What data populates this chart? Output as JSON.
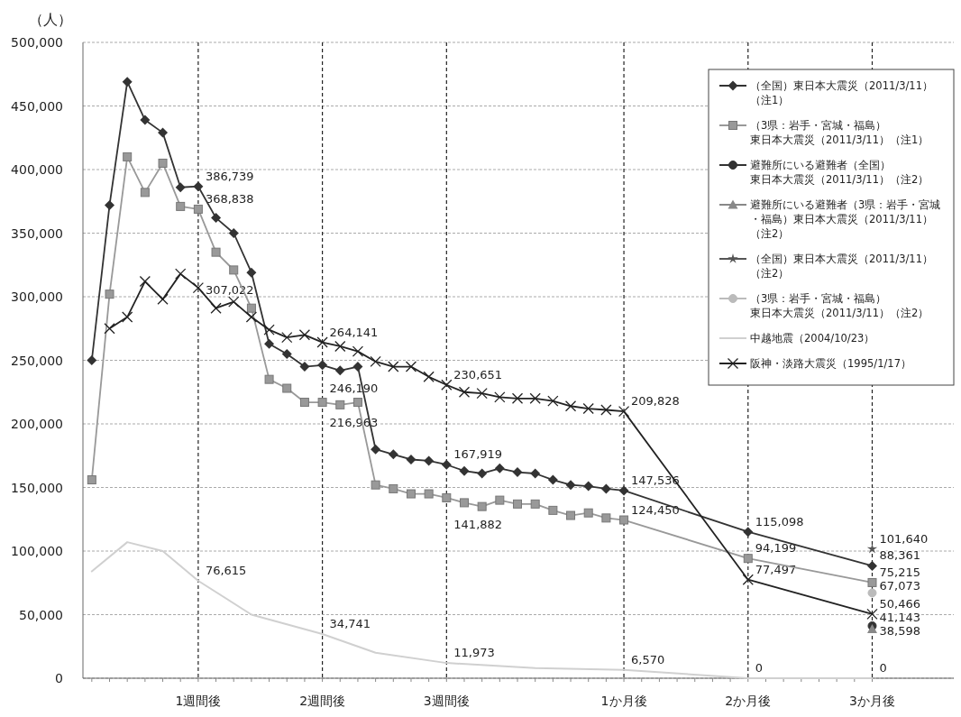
{
  "chart_data": {
    "type": "line",
    "ylabel": "（人）",
    "categories": [
      null,
      null,
      null,
      null,
      null,
      null,
      "1週間後",
      null,
      null,
      null,
      null,
      null,
      null,
      "2週間後",
      null,
      null,
      null,
      null,
      null,
      null,
      "3週間後",
      null,
      null,
      null,
      null,
      null,
      null,
      null,
      null,
      null,
      "1か月後",
      null,
      null,
      null,
      null,
      null,
      null,
      "2か月後",
      null,
      null,
      null,
      null,
      null,
      null,
      "3か月後"
    ],
    "ylim": [
      0,
      500000
    ],
    "yticks": [
      {
        "value": 0,
        "label": "0"
      },
      {
        "value": 50000,
        "label": "50,000"
      },
      {
        "value": 100000,
        "label": "100,000"
      },
      {
        "value": 150000,
        "label": "150,000"
      },
      {
        "value": 200000,
        "label": "200,000"
      },
      {
        "value": 250000,
        "label": "250,000"
      },
      {
        "value": 300000,
        "label": "300,000"
      },
      {
        "value": 350000,
        "label": "350,000"
      },
      {
        "value": 400000,
        "label": "400,000"
      },
      {
        "value": 450000,
        "label": "450,000"
      },
      {
        "value": 500000,
        "label": "500,000"
      }
    ],
    "grid": true,
    "legend": "top right",
    "series": [
      {
        "name": "（全国）東日本大震災（2011/3/11）（注1）",
        "color": "#333333",
        "marker": "diamond",
        "values": [
          250000,
          372000,
          469000,
          439000,
          429000,
          386000,
          386739,
          362000,
          350000,
          319000,
          263000,
          255000,
          245000,
          246190,
          242000,
          245000,
          180000,
          176000,
          172000,
          171000,
          167919,
          163000,
          161000,
          165000,
          162000,
          161000,
          156000,
          152000,
          151000,
          149000,
          147536,
          null,
          null,
          null,
          null,
          null,
          null,
          115098,
          null,
          null,
          null,
          null,
          null,
          null,
          88361
        ]
      },
      {
        "name": "（3県：岩手・宮城・福島）東日本大震災（2011/3/11）（注1）",
        "color": "#999999",
        "marker": "square",
        "values": [
          156000,
          302000,
          410000,
          382000,
          405000,
          371000,
          368838,
          335000,
          321000,
          291000,
          235000,
          228000,
          217000,
          216963,
          215000,
          217000,
          152000,
          149000,
          145000,
          145000,
          141882,
          138000,
          135000,
          140000,
          137000,
          137000,
          132000,
          128000,
          130000,
          126000,
          124450,
          null,
          null,
          null,
          null,
          null,
          null,
          94199,
          null,
          null,
          null,
          null,
          null,
          null,
          75215
        ]
      },
      {
        "name": "避難所にいる避難者（全国）東日本大震災（2011/3/11）（注2）",
        "color": "#333333",
        "marker": "circle",
        "values": [
          null,
          null,
          null,
          null,
          null,
          null,
          null,
          null,
          null,
          null,
          null,
          null,
          null,
          null,
          null,
          null,
          null,
          null,
          null,
          null,
          null,
          null,
          null,
          null,
          null,
          null,
          null,
          null,
          null,
          null,
          null,
          null,
          null,
          null,
          null,
          null,
          null,
          null,
          null,
          null,
          null,
          null,
          null,
          null,
          41143
        ]
      },
      {
        "name": "避難所にいる避難者（3県：岩手・宮城・福島）東日本大震災（2011/3/11）（注2）",
        "color": "#888888",
        "marker": "triangle",
        "values": [
          null,
          null,
          null,
          null,
          null,
          null,
          null,
          null,
          null,
          null,
          null,
          null,
          null,
          null,
          null,
          null,
          null,
          null,
          null,
          null,
          null,
          null,
          null,
          null,
          null,
          null,
          null,
          null,
          null,
          null,
          null,
          null,
          null,
          null,
          null,
          null,
          null,
          null,
          null,
          null,
          null,
          null,
          null,
          null,
          38598
        ]
      },
      {
        "name": "（全国）東日本大震災（2011/3/11）（注2）",
        "color": "#555555",
        "marker": "star",
        "values": [
          null,
          null,
          null,
          null,
          null,
          null,
          null,
          null,
          null,
          null,
          null,
          null,
          null,
          null,
          null,
          null,
          null,
          null,
          null,
          null,
          null,
          null,
          null,
          null,
          null,
          null,
          null,
          null,
          null,
          null,
          null,
          null,
          null,
          null,
          null,
          null,
          null,
          null,
          null,
          null,
          null,
          null,
          null,
          null,
          101640
        ]
      },
      {
        "name": "（3県：岩手・宮城・福島）東日本大震災（2011/3/11）（注2）",
        "color": "#bbbbbb",
        "marker": "circle",
        "values": [
          null,
          null,
          null,
          null,
          null,
          null,
          null,
          null,
          null,
          null,
          null,
          null,
          null,
          null,
          null,
          null,
          null,
          null,
          null,
          null,
          null,
          null,
          null,
          null,
          null,
          null,
          null,
          null,
          null,
          null,
          null,
          null,
          null,
          null,
          null,
          null,
          null,
          null,
          null,
          null,
          null,
          null,
          null,
          null,
          67073
        ]
      },
      {
        "name": "中越地震（2004/10/23）",
        "color": "#d0d0d0",
        "marker": "none",
        "values": [
          84000,
          null,
          107000,
          null,
          100000,
          null,
          76615,
          null,
          null,
          50000,
          null,
          null,
          null,
          34741,
          null,
          null,
          20000,
          null,
          null,
          null,
          11973,
          null,
          null,
          null,
          null,
          8000,
          null,
          null,
          null,
          null,
          6570,
          null,
          null,
          null,
          null,
          null,
          null,
          0,
          null,
          null,
          null,
          null,
          null,
          null,
          0
        ]
      },
      {
        "name": "阪神・淡路大震災（1995/1/17）",
        "color": "#222222",
        "marker": "cross",
        "values": [
          null,
          275000,
          284000,
          312000,
          298000,
          318000,
          307022,
          291000,
          296000,
          284000,
          274000,
          268000,
          270000,
          264141,
          261000,
          257000,
          249000,
          245000,
          245000,
          237000,
          230651,
          225000,
          224000,
          221000,
          220000,
          220000,
          218000,
          214000,
          212000,
          211000,
          209828,
          null,
          null,
          null,
          null,
          null,
          null,
          77497,
          null,
          null,
          null,
          null,
          null,
          null,
          50466
        ]
      }
    ],
    "annotations": [
      {
        "text": "386,739",
        "x": "1週間後",
        "y": 386739
      },
      {
        "text": "368,838",
        "x": "1週間後",
        "y": 368838
      },
      {
        "text": "307,022",
        "x": "1週間後",
        "y": 307022
      },
      {
        "text": "76,615",
        "x": "1週間後",
        "y": 76615
      },
      {
        "text": "264,141",
        "x": "2週間後",
        "y": 264141
      },
      {
        "text": "246,190",
        "x": "2週間後",
        "y": 246190
      },
      {
        "text": "216,963",
        "x": "2週間後",
        "y": 216963
      },
      {
        "text": "34,741",
        "x": "2週間後",
        "y": 34741
      },
      {
        "text": "230,651",
        "x": "3週間後",
        "y": 230651
      },
      {
        "text": "167,919",
        "x": "3週間後",
        "y": 167919
      },
      {
        "text": "141,882",
        "x": "3週間後",
        "y": 141882
      },
      {
        "text": "11,973",
        "x": "3週間後",
        "y": 11973
      },
      {
        "text": "209,828",
        "x": "1か月後",
        "y": 209828
      },
      {
        "text": "147,536",
        "x": "1か月後",
        "y": 147536
      },
      {
        "text": "124,450",
        "x": "1か月後",
        "y": 124450
      },
      {
        "text": "6,570",
        "x": "1か月後",
        "y": 6570
      },
      {
        "text": "115,098",
        "x": "2か月後",
        "y": 115098
      },
      {
        "text": "94,199",
        "x": "2か月後",
        "y": 94199
      },
      {
        "text": "77,497",
        "x": "2か月後",
        "y": 77497
      },
      {
        "text": "0",
        "x": "2か月後",
        "y": 0
      },
      {
        "text": "101,640",
        "x": "3か月後",
        "y": 101640
      },
      {
        "text": "88,361",
        "x": "3か月後",
        "y": 88361
      },
      {
        "text": "75,215",
        "x": "3か月後",
        "y": 75215
      },
      {
        "text": "67,073",
        "x": "3か月後",
        "y": 67073
      },
      {
        "text": "50,466",
        "x": "3か月後",
        "y": 50466
      },
      {
        "text": "41,143",
        "x": "3か月後",
        "y": 41143
      },
      {
        "text": "38,598",
        "x": "3か月後",
        "y": 38598
      },
      {
        "text": "0",
        "x": "3か月後",
        "y": 0
      }
    ]
  }
}
